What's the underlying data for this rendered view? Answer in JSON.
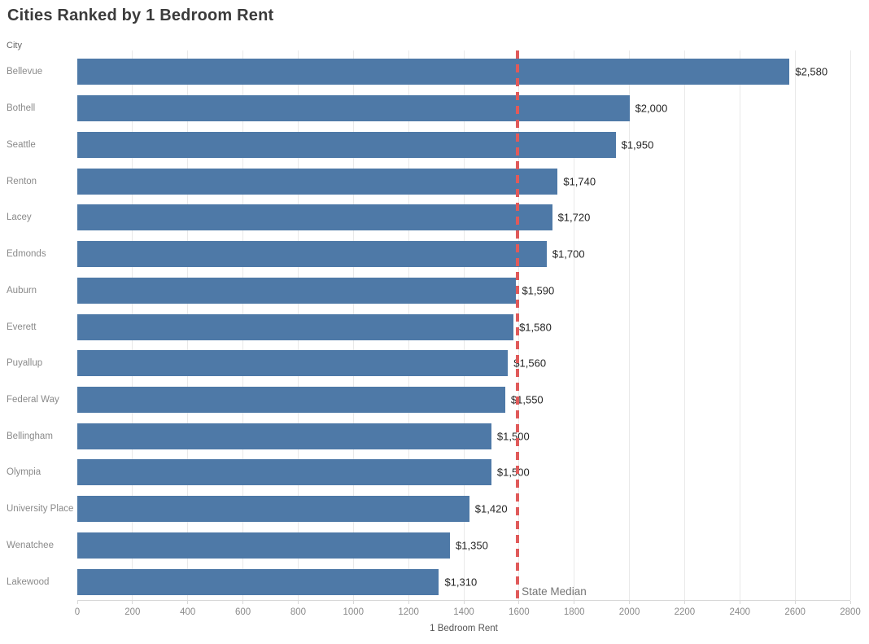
{
  "title": "Cities Ranked by 1 Bedroom Rent",
  "column_header": "City",
  "median_annotation": "State Median",
  "colors": {
    "bar": "#4e79a7",
    "median_line": "#e05a5a",
    "gridline": "#e9e9e9",
    "axis_line": "#d8d8d8",
    "title_text": "#3b3b3b",
    "category_text": "#8a8a8a",
    "value_text": "#262626",
    "annotation_text": "#757575"
  },
  "chart_data": {
    "type": "bar",
    "orientation": "horizontal",
    "title": "Cities Ranked by 1 Bedroom Rent",
    "xlabel": "1 Bedroom Rent",
    "ylabel": "City",
    "categories": [
      "Bellevue",
      "Bothell",
      "Seattle",
      "Renton",
      "Lacey",
      "Edmonds",
      "Auburn",
      "Everett",
      "Puyallup",
      "Federal Way",
      "Bellingham",
      "Olympia",
      "University Place",
      "Wenatchee",
      "Lakewood"
    ],
    "values": [
      2580,
      2000,
      1950,
      1740,
      1720,
      1700,
      1590,
      1580,
      1560,
      1550,
      1500,
      1500,
      1420,
      1350,
      1310
    ],
    "value_labels": [
      "$2,580",
      "$2,000",
      "$1,950",
      "$1,740",
      "$1,720",
      "$1,700",
      "$1,590",
      "$1,580",
      "$1,560",
      "$1,550",
      "$1,500",
      "$1,500",
      "$1,420",
      "$1,350",
      "$1,310"
    ],
    "xlim": [
      0,
      2800
    ],
    "xticks": [
      0,
      200,
      400,
      600,
      800,
      1000,
      1200,
      1400,
      1600,
      1800,
      2000,
      2200,
      2400,
      2600,
      2800
    ],
    "grid": true,
    "legend": "none",
    "annotations": [
      {
        "type": "vline",
        "x": 1595,
        "label": "State Median"
      }
    ]
  }
}
